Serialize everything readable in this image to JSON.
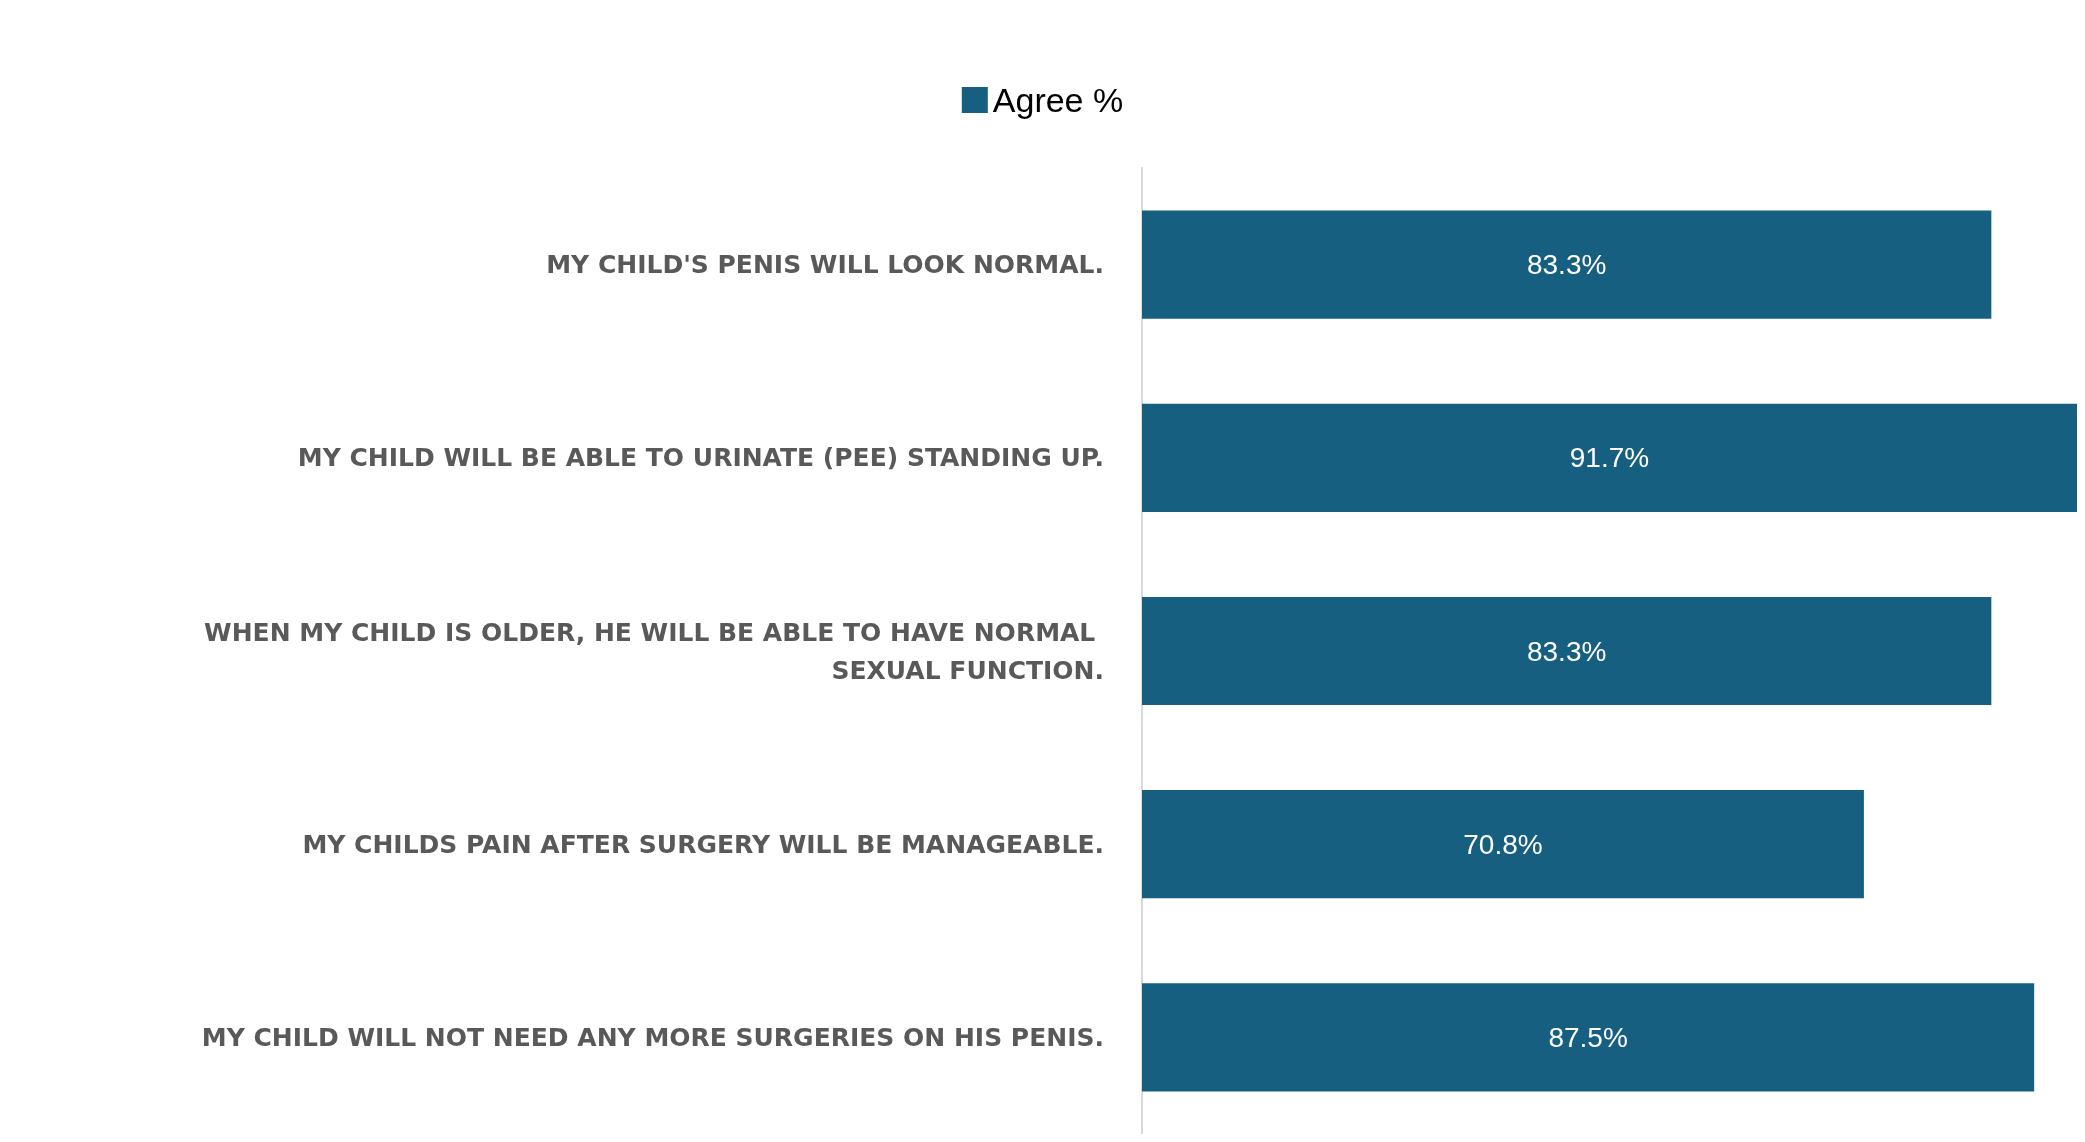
{
  "chart_data": {
    "type": "bar",
    "orientation": "horizontal",
    "categories": [
      "MY CHILD'S PENIS WILL LOOK NORMAL.",
      "MY CHILD WILL BE ABLE TO URINATE (PEE) STANDING UP.",
      "WHEN MY CHILD IS OLDER, HE WILL BE ABLE TO HAVE NORMAL SEXUAL FUNCTION.",
      "MY CHILDS PAIN AFTER SURGERY WILL BE MANAGEABLE.",
      "MY CHILD WILL NOT NEED ANY MORE SURGERIES ON HIS PENIS."
    ],
    "series": [
      {
        "name": "Agree %",
        "color": "#175f81",
        "values": [
          83.3,
          91.7,
          83.3,
          70.8,
          87.5
        ],
        "value_labels": [
          "83.3%",
          "91.7%",
          "83.3%",
          "70.8%",
          "87.5%"
        ]
      }
    ],
    "legend": "top",
    "grid": false
  }
}
